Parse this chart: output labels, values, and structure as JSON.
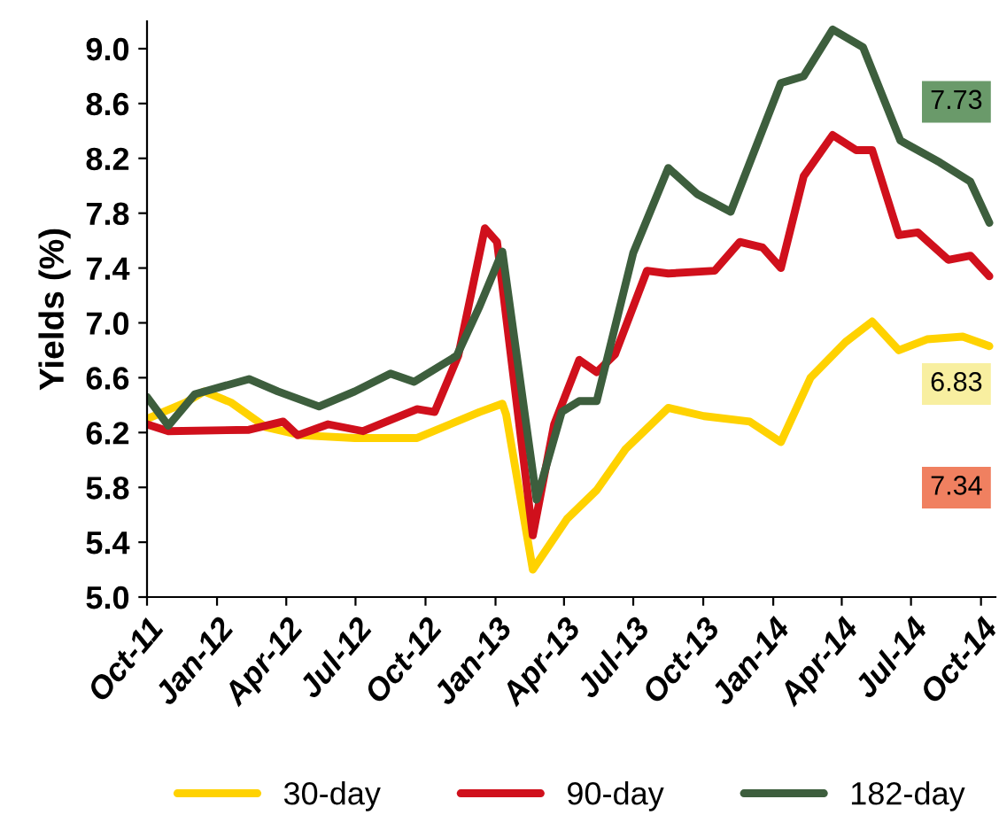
{
  "chart_data": {
    "type": "line",
    "ylabel": "Yields (%)",
    "xlim": [
      "2011-10-01",
      "2014-10-20"
    ],
    "xticks": [
      {
        "value": "2011-10-01",
        "label": "Oct-11"
      },
      {
        "value": "2012-01-01",
        "label": "Jan-12"
      },
      {
        "value": "2012-04-01",
        "label": "Apr-12"
      },
      {
        "value": "2012-07-01",
        "label": "Jul-12"
      },
      {
        "value": "2012-10-01",
        "label": "Oct-12"
      },
      {
        "value": "2013-01-01",
        "label": "Jan-13"
      },
      {
        "value": "2013-04-01",
        "label": "Apr-13"
      },
      {
        "value": "2013-07-01",
        "label": "Jul-13"
      },
      {
        "value": "2013-10-01",
        "label": "Oct-13"
      },
      {
        "value": "2014-01-01",
        "label": "Jan-14"
      },
      {
        "value": "2014-04-01",
        "label": "Apr-14"
      },
      {
        "value": "2014-07-01",
        "label": "Jul-14"
      },
      {
        "value": "2014-10-01",
        "label": "Oct-14"
      }
    ],
    "ylim": [
      5.0,
      9.2
    ],
    "yticks": [
      {
        "value": 5.0,
        "label": "5.0"
      },
      {
        "value": 5.4,
        "label": "5.4"
      },
      {
        "value": 5.8,
        "label": "5.8"
      },
      {
        "value": 6.2,
        "label": "6.2"
      },
      {
        "value": 6.6,
        "label": "6.6"
      },
      {
        "value": 7.0,
        "label": "7.0"
      },
      {
        "value": 7.4,
        "label": "7.4"
      },
      {
        "value": 7.8,
        "label": "7.8"
      },
      {
        "value": 8.2,
        "label": "8.2"
      },
      {
        "value": 8.6,
        "label": "8.6"
      },
      {
        "value": 9.0,
        "label": "9.0"
      }
    ],
    "grid": false,
    "legend": "bottom",
    "marker": "none",
    "line_style": "solid",
    "series": [
      {
        "name": "30-day",
        "color": "#ffd200",
        "x": [
          "2011-10-01",
          "2011-11-21",
          "2011-12-15",
          "2012-01-19",
          "2012-03-05",
          "2012-04-21",
          "2012-06-30",
          "2012-09-20",
          "2012-12-11",
          "2013-01-10",
          "2013-01-15",
          "2013-02-19",
          "2013-04-05",
          "2013-05-14",
          "2013-06-21",
          "2013-08-16",
          "2013-10-02",
          "2013-12-01",
          "2014-01-11",
          "2014-02-19",
          "2014-04-06",
          "2014-05-11",
          "2014-06-15",
          "2014-07-22",
          "2014-09-07",
          "2014-10-12"
        ],
        "values": [
          6.3,
          6.42,
          6.5,
          6.42,
          6.24,
          6.18,
          6.16,
          6.16,
          6.35,
          6.41,
          6.33,
          5.2,
          5.57,
          5.78,
          6.08,
          6.38,
          6.32,
          6.28,
          6.13,
          6.6,
          6.86,
          7.01,
          6.8,
          6.88,
          6.9,
          6.83
        ]
      },
      {
        "name": "90-day",
        "color": "#d0101c",
        "x": [
          "2011-10-01",
          "2011-10-29",
          "2012-02-12",
          "2012-03-28",
          "2012-04-16",
          "2012-05-26",
          "2012-07-11",
          "2012-09-20",
          "2012-10-13",
          "2012-11-13",
          "2012-12-18",
          "2013-01-03",
          "2013-02-19",
          "2013-03-19",
          "2013-04-21",
          "2013-05-14",
          "2013-06-07",
          "2013-07-19",
          "2013-08-16",
          "2013-10-16",
          "2013-11-18",
          "2013-12-18",
          "2014-01-11",
          "2014-02-10",
          "2014-03-20",
          "2014-04-20",
          "2014-05-11",
          "2014-06-15",
          "2014-07-10",
          "2014-08-19",
          "2014-09-17",
          "2014-10-12"
        ],
        "values": [
          6.26,
          6.21,
          6.22,
          6.28,
          6.18,
          6.26,
          6.21,
          6.37,
          6.35,
          6.76,
          7.69,
          7.59,
          5.45,
          6.26,
          6.73,
          6.64,
          6.77,
          7.38,
          7.36,
          7.38,
          7.59,
          7.55,
          7.4,
          8.07,
          8.37,
          8.26,
          8.26,
          7.64,
          7.66,
          7.46,
          7.49,
          7.34
        ]
      },
      {
        "name": "182-day",
        "color": "#3d5e3d",
        "x": [
          "2011-10-01",
          "2011-10-29",
          "2011-12-03",
          "2012-02-12",
          "2012-03-21",
          "2012-05-14",
          "2012-06-30",
          "2012-08-16",
          "2012-09-16",
          "2012-11-11",
          "2012-12-11",
          "2013-01-10",
          "2013-02-24",
          "2013-03-29",
          "2013-04-21",
          "2013-05-14",
          "2013-07-01",
          "2013-08-16",
          "2013-09-23",
          "2013-11-06",
          "2014-01-11",
          "2014-02-10",
          "2014-03-20",
          "2014-04-29",
          "2014-06-17",
          "2014-08-08",
          "2014-09-17",
          "2014-10-12"
        ],
        "values": [
          6.46,
          6.25,
          6.48,
          6.59,
          6.5,
          6.39,
          6.5,
          6.63,
          6.57,
          6.76,
          7.12,
          7.52,
          5.71,
          6.35,
          6.43,
          6.43,
          7.51,
          8.13,
          7.94,
          7.81,
          8.75,
          8.8,
          9.14,
          9.01,
          8.33,
          8.17,
          8.03,
          7.73
        ]
      }
    ],
    "annotations": [
      "7.73",
      "6.83",
      "7.34"
    ]
  }
}
